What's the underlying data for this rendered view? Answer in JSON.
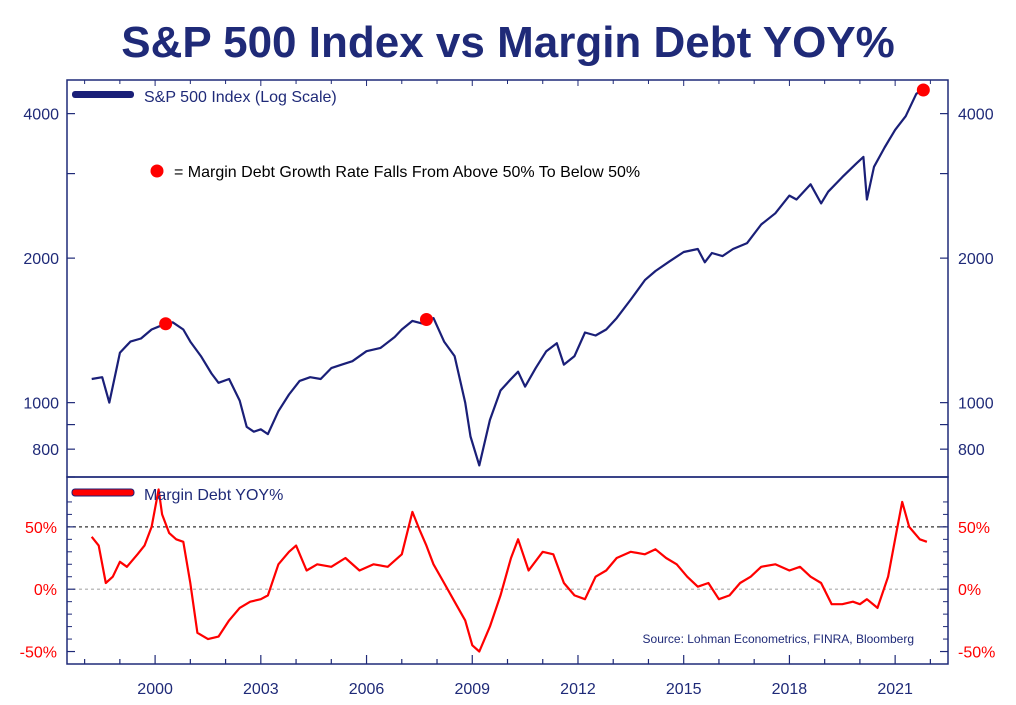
{
  "title": "S&P 500 Index vs Margin Debt YOY%",
  "colors": {
    "navy": "#1a1f78",
    "red": "#ff0000",
    "frame": "#1f2a78",
    "dot": "#ff0000"
  },
  "chart_data": [
    {
      "type": "line",
      "legend": "S&P 500 Index (Log Scale)",
      "scale": "log",
      "ylim": [
        700,
        4700
      ],
      "yticks": [
        800,
        1000,
        2000,
        4000
      ],
      "x": [
        1998.2,
        1998.5,
        1998.7,
        1998.9,
        1999.0,
        1999.3,
        1999.6,
        1999.9,
        2000.2,
        2000.5,
        2000.8,
        2001.0,
        2001.3,
        2001.6,
        2001.8,
        2002.1,
        2002.4,
        2002.6,
        2002.8,
        2003.0,
        2003.2,
        2003.5,
        2003.8,
        2004.1,
        2004.4,
        2004.7,
        2005.0,
        2005.3,
        2005.6,
        2006.0,
        2006.4,
        2006.8,
        2007.0,
        2007.3,
        2007.6,
        2007.9,
        2008.2,
        2008.5,
        2008.8,
        2008.95,
        2009.2,
        2009.5,
        2009.8,
        2010.1,
        2010.3,
        2010.5,
        2010.8,
        2011.1,
        2011.4,
        2011.6,
        2011.9,
        2012.2,
        2012.5,
        2012.8,
        2013.1,
        2013.5,
        2013.9,
        2014.2,
        2014.6,
        2015.0,
        2015.4,
        2015.6,
        2015.8,
        2016.1,
        2016.4,
        2016.8,
        2017.2,
        2017.6,
        2018.0,
        2018.2,
        2018.6,
        2018.9,
        2019.1,
        2019.5,
        2019.9,
        2020.1,
        2020.2,
        2020.4,
        2020.7,
        2021.0,
        2021.3,
        2021.6,
        2021.9
      ],
      "values": [
        1120,
        1130,
        1000,
        1170,
        1270,
        1340,
        1360,
        1420,
        1450,
        1470,
        1420,
        1340,
        1250,
        1150,
        1100,
        1120,
        1010,
        890,
        870,
        880,
        860,
        960,
        1040,
        1110,
        1130,
        1120,
        1180,
        1200,
        1220,
        1280,
        1300,
        1370,
        1420,
        1480,
        1460,
        1500,
        1340,
        1250,
        1000,
        850,
        740,
        920,
        1060,
        1120,
        1160,
        1080,
        1180,
        1280,
        1330,
        1200,
        1250,
        1400,
        1380,
        1420,
        1500,
        1640,
        1800,
        1880,
        1970,
        2060,
        2090,
        1960,
        2050,
        2020,
        2090,
        2150,
        2350,
        2480,
        2700,
        2650,
        2850,
        2600,
        2750,
        2950,
        3150,
        3250,
        2650,
        3100,
        3400,
        3700,
        3950,
        4400,
        4550
      ]
    },
    {
      "type": "line",
      "legend": "Margin Debt YOY%",
      "ylim": [
        -60,
        90
      ],
      "yticks": [
        -50,
        0,
        50
      ],
      "ytick_labels": [
        "-50%",
        "0%",
        "50%"
      ],
      "reference_lines": [
        50,
        0
      ],
      "x": [
        1998.2,
        1998.4,
        1998.6,
        1998.8,
        1999.0,
        1999.2,
        1999.5,
        1999.7,
        1999.9,
        2000.1,
        2000.2,
        2000.4,
        2000.6,
        2000.8,
        2001.0,
        2001.2,
        2001.5,
        2001.8,
        2002.1,
        2002.4,
        2002.7,
        2003.0,
        2003.2,
        2003.5,
        2003.8,
        2004.0,
        2004.3,
        2004.6,
        2005.0,
        2005.4,
        2005.8,
        2006.2,
        2006.6,
        2007.0,
        2007.3,
        2007.5,
        2007.7,
        2007.9,
        2008.2,
        2008.5,
        2008.8,
        2009.0,
        2009.2,
        2009.5,
        2009.8,
        2010.1,
        2010.3,
        2010.6,
        2011.0,
        2011.3,
        2011.6,
        2011.9,
        2012.2,
        2012.5,
        2012.8,
        2013.1,
        2013.5,
        2013.9,
        2014.2,
        2014.5,
        2014.8,
        2015.1,
        2015.4,
        2015.7,
        2016.0,
        2016.3,
        2016.6,
        2016.9,
        2017.2,
        2017.6,
        2018.0,
        2018.3,
        2018.6,
        2018.9,
        2019.2,
        2019.5,
        2019.8,
        2020.0,
        2020.2,
        2020.5,
        2020.8,
        2021.0,
        2021.2,
        2021.4,
        2021.7,
        2021.9
      ],
      "values": [
        42,
        35,
        5,
        10,
        22,
        18,
        28,
        35,
        50,
        80,
        60,
        45,
        40,
        38,
        5,
        -35,
        -40,
        -38,
        -25,
        -15,
        -10,
        -8,
        -5,
        20,
        30,
        35,
        15,
        20,
        18,
        25,
        15,
        20,
        18,
        28,
        62,
        48,
        35,
        20,
        5,
        -10,
        -25,
        -45,
        -50,
        -30,
        -5,
        25,
        40,
        15,
        30,
        28,
        5,
        -5,
        -8,
        10,
        15,
        25,
        30,
        28,
        32,
        25,
        20,
        10,
        2,
        5,
        -8,
        -5,
        5,
        10,
        18,
        20,
        15,
        18,
        10,
        5,
        -12,
        -12,
        -10,
        -12,
        -8,
        -15,
        10,
        40,
        70,
        50,
        40,
        38
      ]
    },
    {
      "type": "scatter",
      "legend": "= Margin Debt Growth Rate Falls From Above 50% To Below 50%",
      "x": [
        2000.3,
        2007.7,
        2021.8
      ],
      "values": [
        1460,
        1490,
        4480
      ]
    }
  ],
  "x_axis": {
    "xlim": [
      1997.5,
      2022.5
    ],
    "ticks": [
      2000,
      2003,
      2006,
      2009,
      2012,
      2015,
      2018,
      2021
    ],
    "tick_labels": [
      "2000",
      "2003",
      "2006",
      "2009",
      "2012",
      "2015",
      "2018",
      "2021"
    ]
  },
  "source": "Source: Lohman Econometrics, FINRA, Bloomberg"
}
